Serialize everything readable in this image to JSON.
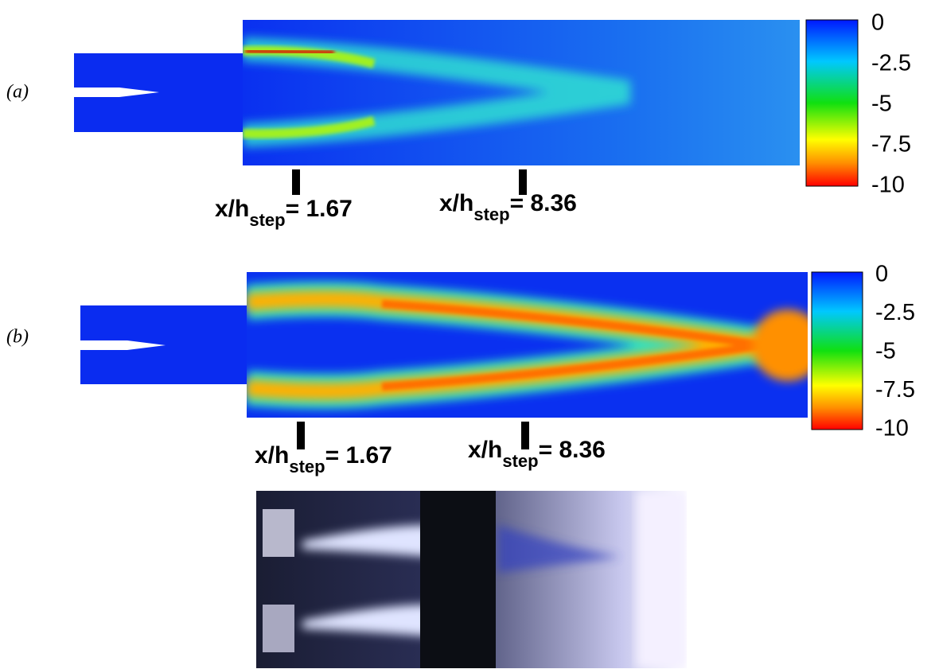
{
  "panels": [
    {
      "label": "(a)",
      "colorbar": {
        "ticks": [
          0,
          -2.5,
          -5,
          -7.5,
          -10
        ]
      },
      "markers": [
        {
          "prefix": "x/h",
          "subscript": "step",
          "suffix": "= 1.67"
        },
        {
          "prefix": "x/h",
          "subscript": "step",
          "suffix": "= 8.36"
        }
      ]
    },
    {
      "label": "(b)",
      "colorbar": {
        "ticks": [
          0,
          -2.5,
          -5,
          -7.5,
          -10
        ]
      },
      "markers": [
        {
          "prefix": "x/h",
          "subscript": "step",
          "suffix": "= 1.67"
        },
        {
          "prefix": "x/h",
          "subscript": "step",
          "suffix": "= 8.36"
        }
      ]
    }
  ]
}
